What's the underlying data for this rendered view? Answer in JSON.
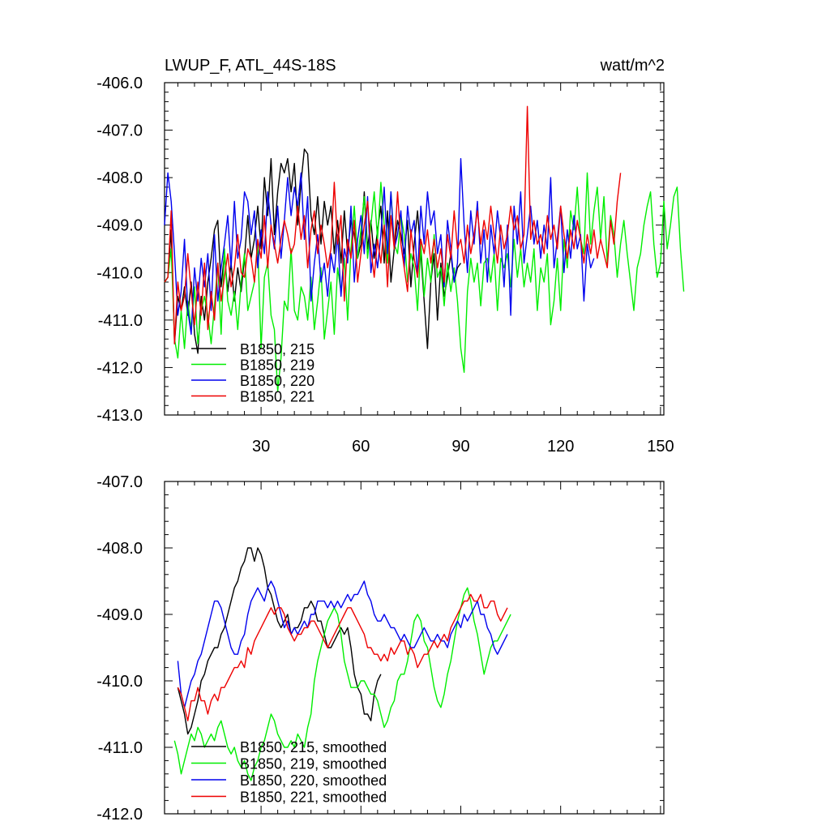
{
  "chart_data": [
    {
      "type": "line",
      "title_left": "LWUP_F, ATL_44S-18S",
      "title_right": "watt/m^2",
      "xlim": [
        1,
        151
      ],
      "ylim": [
        -413.0,
        -406.0
      ],
      "yticks": [
        "-406.0",
        "-407.0",
        "-408.0",
        "-409.0",
        "-410.0",
        "-411.0",
        "-412.0",
        "-413.0"
      ],
      "xticks": [
        "30",
        "60",
        "90",
        "120",
        "150"
      ],
      "legend": [
        "B1850, 215",
        "B1850, 219",
        "B1850, 220",
        "B1850, 221"
      ],
      "colors": [
        "#000000",
        "#00ee00",
        "#0000ee",
        "#ee0000"
      ],
      "series": [
        {
          "name": "B1850, 215",
          "start": 1,
          "values": [
            -410.2,
            -410.1,
            -409.1,
            -411.5,
            -410.5,
            -410.8,
            -410.3,
            -410.9,
            -410.2,
            -411.3,
            -411.7,
            -410.5,
            -411.0,
            -410.2,
            -409.7,
            -409.1,
            -408.9,
            -410.3,
            -409.6,
            -410.4,
            -409.8,
            -410.6,
            -409.9,
            -410.4,
            -409.7,
            -408.8,
            -409.7,
            -409.3,
            -408.6,
            -409.5,
            -408.0,
            -408.8,
            -407.6,
            -409.2,
            -408.3,
            -407.7,
            -407.9,
            -407.6,
            -408.3,
            -407.7,
            -409.0,
            -408.1,
            -407.4,
            -407.5,
            -408.8,
            -409.2,
            -408.4,
            -409.4,
            -408.5,
            -409.0,
            -408.6,
            -409.6,
            -408.9,
            -409.8,
            -408.7,
            -409.6,
            -408.9,
            -409.2,
            -409.7,
            -409.4,
            -408.3,
            -409.5,
            -408.9,
            -409.7,
            -409.1,
            -408.6,
            -409.8,
            -408.7,
            -410.2,
            -409.5,
            -408.9,
            -409.2,
            -409.6,
            -408.9,
            -410.3,
            -409.4,
            -408.7,
            -409.6,
            -410.6,
            -411.6,
            -410.2,
            -409.6,
            -411.0,
            -409.8,
            -410.5,
            -410.1,
            -409.6,
            -410.2,
            -409.9,
            -409.8
          ]
        },
        {
          "name": "B1850, 219",
          "start": 1,
          "values": [
            -410.2,
            -410.1,
            -409.5,
            -411.4,
            -411.8,
            -410.8,
            -411.6,
            -410.6,
            -411.2,
            -410.3,
            -411.5,
            -410.8,
            -410.5,
            -410.9,
            -411.5,
            -410.7,
            -409.8,
            -411.3,
            -409.5,
            -410.6,
            -410.9,
            -410.4,
            -411.2,
            -410.2,
            -409.6,
            -410.8,
            -410.5,
            -410.2,
            -409.4,
            -411.6,
            -410.1,
            -409.8,
            -410.9,
            -411.2,
            -412.5,
            -411.8,
            -410.6,
            -410.8,
            -409.5,
            -410.8,
            -411.0,
            -410.3,
            -410.5,
            -411.0,
            -410.1,
            -411.2,
            -410.6,
            -409.9,
            -411.4,
            -410.8,
            -410.2,
            -411.3,
            -409.9,
            -410.4,
            -409.7,
            -411.0,
            -409.5,
            -408.6,
            -409.7,
            -409.1,
            -408.4,
            -409.7,
            -409.0,
            -408.3,
            -409.3,
            -408.1,
            -409.0,
            -409.8,
            -408.3,
            -409.4,
            -409.6,
            -408.8,
            -409.2,
            -410.2,
            -409.6,
            -409.9,
            -410.8,
            -409.4,
            -410.5,
            -409.7,
            -410.2,
            -409.2,
            -410.1,
            -409.9,
            -410.7,
            -409.8,
            -410.4,
            -409.9,
            -410.6,
            -411.6,
            -412.1,
            -410.4,
            -409.7,
            -410.2,
            -409.8,
            -410.7,
            -409.8,
            -409.7,
            -410.2,
            -409.6,
            -410.8,
            -409.7,
            -409.9,
            -409.6,
            -410.3,
            -409.3,
            -410.1,
            -409.5,
            -410.3,
            -409.8,
            -410.2,
            -409.5,
            -410.8,
            -409.9,
            -410.2,
            -409.6,
            -411.1,
            -410.6,
            -409.7,
            -410.8,
            -409.3,
            -409.9,
            -408.7,
            -409.1,
            -408.2,
            -409.3,
            -409.6,
            -407.9,
            -409.4,
            -408.7,
            -408.2,
            -409.3,
            -408.4,
            -409.8,
            -408.8,
            -409.2,
            -410.1,
            -409.4,
            -408.9,
            -409.6,
            -410.2,
            -410.8,
            -409.9,
            -409.6,
            -409.0,
            -408.6,
            -408.3,
            -409.4,
            -410.1,
            -409.8,
            -408.5,
            -409.5,
            -409.0,
            -408.4,
            -408.2,
            -409.5,
            -410.4
          ]
        },
        {
          "name": "B1850, 220",
          "start": 1,
          "values": [
            -409.0,
            -407.9,
            -408.5,
            -409.6,
            -410.9,
            -410.4,
            -409.3,
            -410.8,
            -411.3,
            -409.9,
            -410.6,
            -409.7,
            -410.3,
            -409.6,
            -410.8,
            -409.2,
            -410.6,
            -409.9,
            -409.4,
            -408.8,
            -409.9,
            -408.5,
            -409.7,
            -409.3,
            -408.3,
            -408.5,
            -409.2,
            -408.7,
            -409.9,
            -409.1,
            -409.6,
            -408.3,
            -409.0,
            -409.5,
            -408.6,
            -409.7,
            -408.9,
            -408.0,
            -408.8,
            -408.2,
            -408.6,
            -407.9,
            -409.3,
            -408.4,
            -410.6,
            -409.8,
            -409.2,
            -410.2,
            -409.8,
            -410.5,
            -409.6,
            -410.0,
            -409.2,
            -410.5,
            -409.5,
            -409.8,
            -408.6,
            -410.2,
            -409.3,
            -408.8,
            -409.6,
            -408.4,
            -410.0,
            -409.4,
            -409.9,
            -409.2,
            -408.2,
            -409.6,
            -408.3,
            -409.5,
            -409.2,
            -408.7,
            -409.9,
            -408.6,
            -409.2,
            -408.9,
            -410.1,
            -408.6,
            -409.4,
            -408.3,
            -409.0,
            -408.7,
            -409.6,
            -409.2,
            -410.3,
            -408.9,
            -409.5,
            -410.2,
            -409.8,
            -407.6,
            -409.0,
            -410.0,
            -408.7,
            -409.4,
            -408.5,
            -409.8,
            -409.1,
            -410.2,
            -409.0,
            -409.6,
            -408.7,
            -409.3,
            -410.3,
            -409.0,
            -410.9,
            -408.6,
            -409.4,
            -408.3,
            -409.8,
            -409.2,
            -408.6,
            -409.4,
            -408.9,
            -409.7,
            -409.0,
            -409.5,
            -408.0,
            -409.9,
            -409.3,
            -408.6,
            -410.0,
            -409.1,
            -409.7,
            -408.8,
            -409.5,
            -409.2,
            -410.6,
            -409.4,
            -409.9,
            -409.7
          ]
        },
        {
          "name": "B1850, 221",
          "start": 1,
          "values": [
            -410.2,
            -410.1,
            -408.7,
            -411.5,
            -410.2,
            -410.8,
            -410.5,
            -409.6,
            -410.4,
            -411.1,
            -410.2,
            -410.9,
            -409.8,
            -411.2,
            -410.4,
            -411.0,
            -409.8,
            -410.6,
            -410.1,
            -409.6,
            -410.3,
            -409.9,
            -409.2,
            -410.0,
            -410.1,
            -409.5,
            -409.7,
            -410.2,
            -409.3,
            -409.7,
            -408.8,
            -409.9,
            -409.0,
            -409.4,
            -409.8,
            -409.3,
            -408.9,
            -409.2,
            -409.6,
            -409.4,
            -408.6,
            -409.3,
            -408.8,
            -409.9,
            -409.1,
            -408.7,
            -409.6,
            -409.0,
            -409.4,
            -409.9,
            -409.5,
            -408.1,
            -409.4,
            -408.8,
            -410.6,
            -409.3,
            -409.7,
            -408.9,
            -410.2,
            -409.6,
            -409.0,
            -408.5,
            -409.5,
            -410.1,
            -409.3,
            -409.8,
            -409.0,
            -410.3,
            -408.8,
            -409.5,
            -408.3,
            -409.4,
            -409.9,
            -410.4,
            -409.1,
            -409.7,
            -410.1,
            -409.3,
            -409.6,
            -409.1,
            -409.8,
            -409.3,
            -409.9,
            -409.5,
            -410.2,
            -409.2,
            -409.7,
            -408.7,
            -409.5,
            -409.3,
            -409.8,
            -409.0,
            -409.6,
            -409.2,
            -408.7,
            -409.4,
            -408.9,
            -409.3,
            -408.6,
            -409.2,
            -409.8,
            -409.0,
            -409.5,
            -409.2,
            -408.6,
            -409.1,
            -408.8,
            -409.5,
            -409.2,
            -406.5,
            -409.3,
            -408.9,
            -409.4,
            -409.2,
            -409.6,
            -408.8,
            -409.3,
            -409.0,
            -409.5,
            -408.6,
            -409.2,
            -409.7,
            -409.1,
            -409.5,
            -408.9,
            -409.3,
            -409.8,
            -409.2,
            -409.6,
            -409.1,
            -409.7,
            -409.3,
            -409.6,
            -409.9,
            -408.9,
            -409.4,
            -408.5,
            -407.9
          ]
        }
      ]
    },
    {
      "type": "line",
      "xlim": [
        1,
        151
      ],
      "ylim": [
        -412.0,
        -407.0
      ],
      "yticks": [
        "-407.0",
        "-408.0",
        "-409.0",
        "-410.0",
        "-411.0",
        "-412.0"
      ],
      "xticks": [
        "30",
        "60",
        "90",
        "120",
        "150"
      ],
      "legend": [
        "B1850, 215, smoothed",
        "B1850, 219, smoothed",
        "B1850, 220, smoothed",
        "B1850, 221, smoothed"
      ],
      "colors": [
        "#000000",
        "#00ee00",
        "#0000ee",
        "#ee0000"
      ],
      "series": [
        {
          "name": "B1850, 215, smoothed",
          "start": 5,
          "values": [
            -410.1,
            -410.3,
            -410.5,
            -410.8,
            -410.7,
            -410.5,
            -410.3,
            -410.0,
            -409.9,
            -409.7,
            -409.6,
            -409.5,
            -409.5,
            -409.3,
            -409.2,
            -409.0,
            -408.8,
            -408.6,
            -408.5,
            -408.3,
            -408.2,
            -408.0,
            -408.0,
            -408.2,
            -408.0,
            -408.1,
            -408.3,
            -408.6,
            -408.7,
            -408.9,
            -409.1,
            -409.2,
            -409.1,
            -409.0,
            -409.3,
            -409.2,
            -409.2,
            -409.1,
            -408.9,
            -408.9,
            -408.8,
            -408.9,
            -409.1,
            -409.1,
            -409.3,
            -409.5,
            -409.5,
            -409.4,
            -409.3,
            -409.2,
            -409.3,
            -409.2,
            -409.5,
            -409.9,
            -410.1,
            -410.2,
            -410.5,
            -410.5,
            -410.6,
            -410.2,
            -410.0,
            -409.9
          ]
        },
        {
          "name": "B1850, 219, smoothed",
          "start": 4,
          "values": [
            -410.9,
            -411.1,
            -411.4,
            -411.2,
            -411.0,
            -410.8,
            -410.9,
            -410.7,
            -410.8,
            -411.0,
            -410.9,
            -410.8,
            -410.9,
            -410.7,
            -410.6,
            -410.8,
            -411.0,
            -411.1,
            -411.0,
            -411.2,
            -411.3,
            -411.2,
            -411.4,
            -411.5,
            -411.3,
            -411.2,
            -411.0,
            -410.9,
            -410.7,
            -410.5,
            -410.6,
            -410.8,
            -410.9,
            -411.0,
            -411.0,
            -410.9,
            -411.0,
            -410.8,
            -410.9,
            -411.0,
            -410.7,
            -410.5,
            -410.0,
            -409.7,
            -409.5,
            -409.3,
            -409.1,
            -409.0,
            -408.9,
            -409.0,
            -409.3,
            -409.7,
            -409.9,
            -410.1,
            -410.1,
            -410.1,
            -410.0,
            -410.0,
            -410.1,
            -410.2,
            -410.2,
            -410.3,
            -410.5,
            -410.7,
            -410.6,
            -410.4,
            -410.3,
            -410.0,
            -409.9,
            -409.9,
            -409.7,
            -409.4,
            -409.1,
            -409.0,
            -409.1,
            -409.4,
            -409.5,
            -409.8,
            -410.1,
            -410.3,
            -410.4,
            -410.2,
            -409.9,
            -409.7,
            -409.4,
            -409.1,
            -408.9,
            -408.7,
            -408.6,
            -408.8,
            -409.1,
            -409.3,
            -409.6,
            -409.9,
            -409.7,
            -409.5,
            -409.4,
            -409.4,
            -409.3,
            -409.2,
            -409.1,
            -409.0
          ]
        },
        {
          "name": "B1850, 220, smoothed",
          "start": 5,
          "values": [
            -409.7,
            -410.2,
            -410.4,
            -410.2,
            -410.0,
            -409.9,
            -409.7,
            -409.6,
            -409.4,
            -409.2,
            -409.0,
            -408.8,
            -408.8,
            -408.9,
            -409.1,
            -409.3,
            -409.5,
            -409.6,
            -409.6,
            -409.4,
            -409.3,
            -409.0,
            -408.8,
            -408.7,
            -408.6,
            -408.7,
            -408.8,
            -408.6,
            -408.5,
            -408.6,
            -408.8,
            -409.0,
            -409.2,
            -409.1,
            -409.3,
            -409.2,
            -409.3,
            -409.2,
            -409.1,
            -409.2,
            -409.0,
            -409.0,
            -408.8,
            -408.8,
            -408.8,
            -408.9,
            -408.8,
            -408.9,
            -408.8,
            -408.9,
            -408.8,
            -408.7,
            -408.8,
            -408.7,
            -408.7,
            -408.6,
            -408.5,
            -408.7,
            -408.8,
            -409.0,
            -409.1,
            -409.1,
            -409.0,
            -409.1,
            -409.2,
            -409.2,
            -409.3,
            -409.4,
            -409.3,
            -409.4,
            -409.5,
            -409.5,
            -409.4,
            -409.3,
            -409.2,
            -409.3,
            -409.4,
            -409.4,
            -409.3,
            -409.4,
            -409.4,
            -409.5,
            -409.3,
            -409.2,
            -409.1,
            -409.2,
            -409.0,
            -409.1,
            -409.0,
            -408.9,
            -408.8,
            -409.0,
            -409.0,
            -409.2,
            -409.3,
            -409.5,
            -409.6,
            -409.5,
            -409.4,
            -409.3
          ]
        },
        {
          "name": "B1850, 221, smoothed",
          "start": 5,
          "values": [
            -410.1,
            -410.2,
            -410.4,
            -410.6,
            -410.3,
            -410.3,
            -410.1,
            -410.3,
            -410.3,
            -410.5,
            -410.3,
            -410.2,
            -410.3,
            -410.1,
            -410.1,
            -410.0,
            -409.9,
            -409.8,
            -409.8,
            -409.7,
            -409.8,
            -409.5,
            -409.6,
            -409.4,
            -409.3,
            -409.2,
            -409.1,
            -409.0,
            -408.9,
            -409.0,
            -408.9,
            -408.9,
            -409.0,
            -409.2,
            -409.3,
            -409.4,
            -409.3,
            -409.3,
            -409.2,
            -409.2,
            -409.1,
            -409.1,
            -409.2,
            -409.3,
            -409.4,
            -409.5,
            -409.4,
            -409.3,
            -409.2,
            -409.1,
            -409.0,
            -408.9,
            -408.9,
            -409.0,
            -409.1,
            -409.2,
            -409.3,
            -409.5,
            -409.5,
            -409.6,
            -409.6,
            -409.7,
            -409.6,
            -409.7,
            -409.5,
            -409.6,
            -409.5,
            -409.4,
            -409.4,
            -409.6,
            -409.5,
            -409.6,
            -409.8,
            -409.7,
            -409.6,
            -409.6,
            -409.5,
            -409.4,
            -409.5,
            -409.4,
            -409.3,
            -409.4,
            -409.2,
            -409.1,
            -409.0,
            -408.9,
            -408.8,
            -408.8,
            -408.7,
            -408.8,
            -408.8,
            -408.7,
            -408.9,
            -408.9,
            -408.8,
            -408.8,
            -409.0,
            -409.1,
            -409.0,
            -408.9
          ]
        }
      ]
    }
  ]
}
